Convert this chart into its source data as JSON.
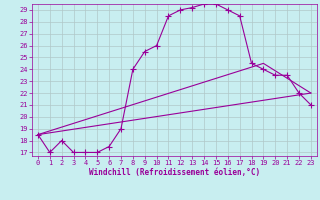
{
  "xlabel": "Windchill (Refroidissement éolien,°C)",
  "background_color": "#c8eef0",
  "line_color": "#990099",
  "grid_color": "#b0c8c8",
  "xlim": [
    -0.5,
    23.5
  ],
  "ylim": [
    16.7,
    29.5
  ],
  "yticks": [
    17,
    18,
    19,
    20,
    21,
    22,
    23,
    24,
    25,
    26,
    27,
    28,
    29
  ],
  "xticks": [
    0,
    1,
    2,
    3,
    4,
    5,
    6,
    7,
    8,
    9,
    10,
    11,
    12,
    13,
    14,
    15,
    16,
    17,
    18,
    19,
    20,
    21,
    22,
    23
  ],
  "line1_x": [
    0,
    1,
    2,
    3,
    4,
    5,
    6,
    7,
    8,
    9,
    10,
    11,
    12,
    13,
    14,
    15,
    16,
    17,
    18,
    19,
    20,
    21,
    22,
    23
  ],
  "line1_y": [
    18.5,
    17.0,
    18.0,
    17.0,
    17.0,
    17.0,
    17.5,
    19.0,
    24.0,
    25.5,
    26.0,
    28.5,
    29.0,
    29.2,
    29.5,
    29.5,
    29.0,
    28.5,
    24.5,
    24.0,
    23.5,
    23.5,
    22.0,
    21.0
  ],
  "line2_x": [
    0,
    23
  ],
  "line2_y": [
    18.5,
    22.0
  ],
  "line3_x": [
    0,
    19,
    23
  ],
  "line3_y": [
    18.5,
    24.5,
    22.0
  ]
}
